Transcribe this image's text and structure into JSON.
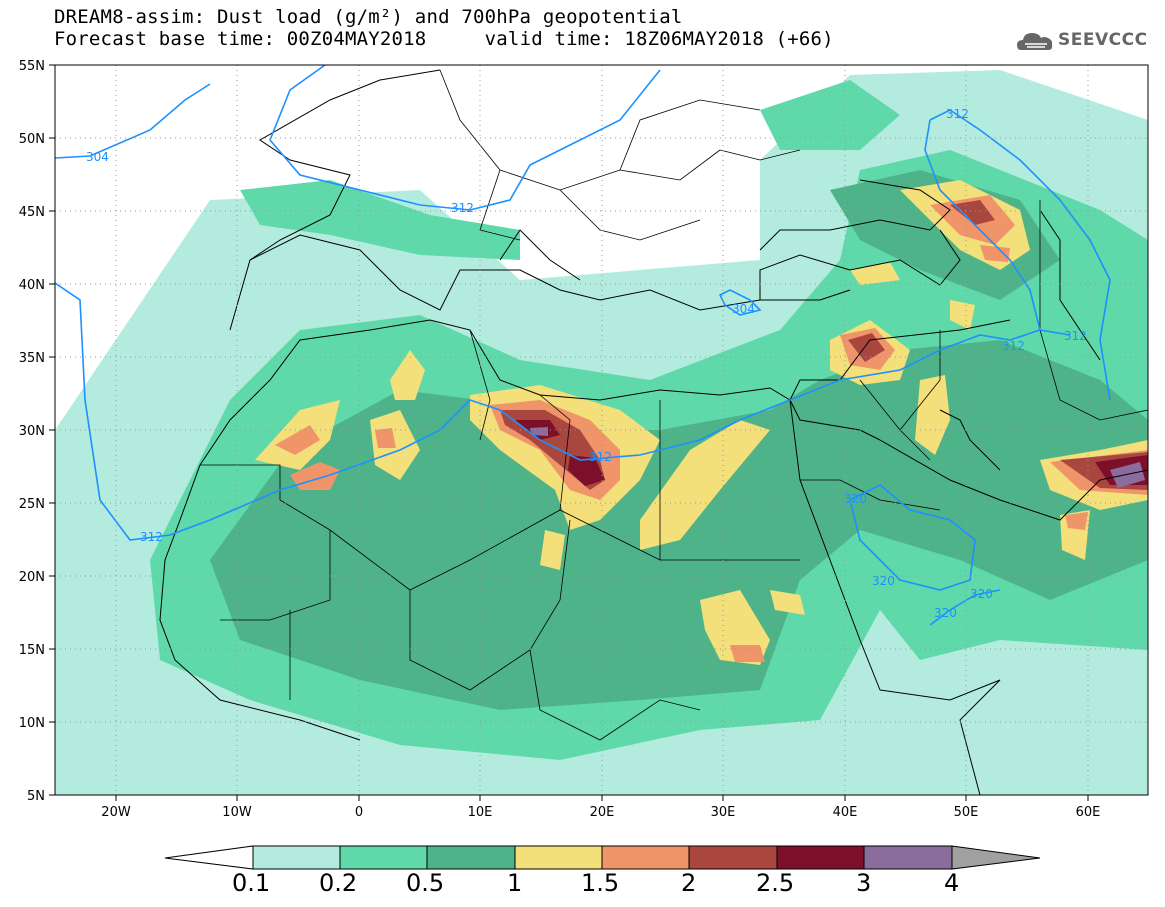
{
  "title": {
    "line1": "DREAM8-assim: Dust load (g/m²) and 700hPa geopotential",
    "line2_base": "Forecast base time: 00Z04MAY2018",
    "line2_valid": "valid time: 18Z06MAY2018 (+66)"
  },
  "logo": {
    "text": "SEEVCCC",
    "icon": "cloud-icon"
  },
  "map": {
    "lon_range": [
      -25,
      65
    ],
    "lat_range": [
      5,
      55
    ],
    "lat_ticks": [
      "55N",
      "50N",
      "45N",
      "40N",
      "35N",
      "30N",
      "25N",
      "20N",
      "15N",
      "10N",
      "5N"
    ],
    "lon_ticks": [
      "20W",
      "10W",
      "0",
      "10E",
      "20E",
      "30E",
      "40E",
      "50E",
      "60E"
    ],
    "contour_labels": [
      "304",
      "312",
      "312",
      "304",
      "312",
      "312",
      "312",
      "320",
      "320",
      "320",
      "320",
      "312"
    ]
  },
  "colorbar": {
    "labels": [
      "0.1",
      "0.2",
      "0.5",
      "1",
      "1.5",
      "2",
      "2.5",
      "3",
      "4"
    ],
    "colors": [
      "#b3ecdf",
      "#5fd9a9",
      "#4fb38a",
      "#f3e07a",
      "#f0946a",
      "#a9473f",
      "#7d0f2a",
      "#8a6d9c",
      "#a0a0a0"
    ]
  },
  "colors": {
    "background": "#ffffff",
    "contour": "#1e90ff"
  }
}
